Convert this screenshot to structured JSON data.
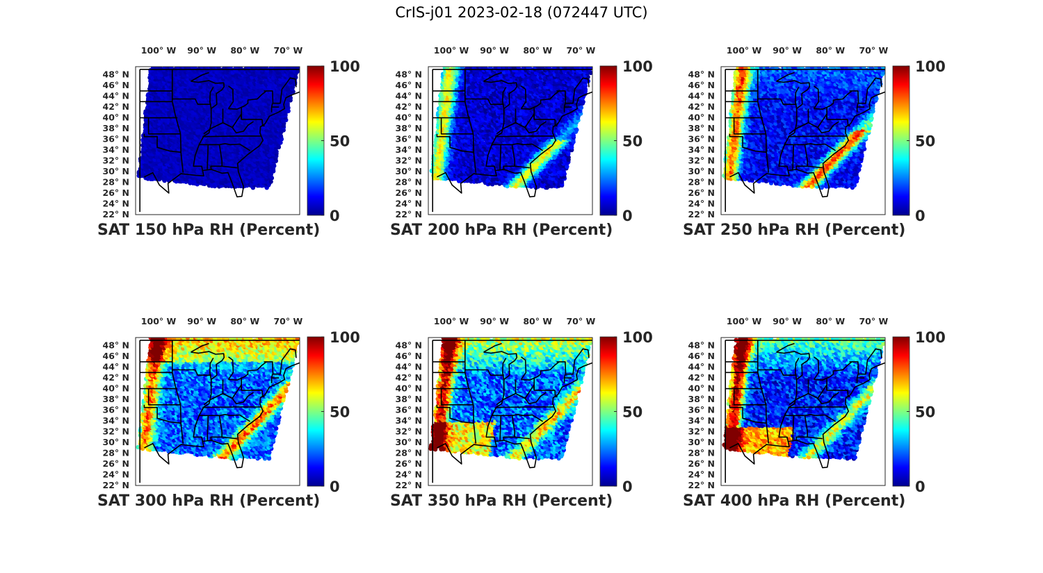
{
  "figure": {
    "title": "CrIS-j01 2023-02-18 (072447 UTC)"
  },
  "colors": {
    "colormap": "jet",
    "background": "#ffffff",
    "boundaries": "#000000",
    "text": "#262626"
  },
  "chart_data": [
    {
      "type": "heatmap",
      "title": "SAT 150 hPa RH (Percent)",
      "level": "150 hPa",
      "variable": "RH",
      "units": "Percent",
      "lon_ticks": [
        "100° W",
        "90° W",
        "80° W",
        "70° W"
      ],
      "lat_ticks": [
        "48° N",
        "46° N",
        "44° N",
        "42° N",
        "40° N",
        "38° N",
        "36° N",
        "34° N",
        "32° N",
        "30° N",
        "28° N",
        "26° N",
        "24° N",
        "22° N"
      ],
      "lon_range": [
        -105,
        -67
      ],
      "lat_range": [
        22,
        49.5
      ],
      "colorbar": {
        "min": 0,
        "max": 100,
        "ticks": [
          "0",
          "50",
          "100"
        ]
      },
      "pattern": "uniformly very dry (~3-10%) across the swath",
      "regions": [
        {
          "name": "swath",
          "rh": 6
        }
      ]
    },
    {
      "type": "heatmap",
      "title": "SAT 200 hPa RH (Percent)",
      "level": "200 hPa",
      "variable": "RH",
      "units": "Percent",
      "lon_ticks": [
        "100° W",
        "90° W",
        "80° W",
        "70° W"
      ],
      "lat_ticks": [
        "48° N",
        "46° N",
        "44° N",
        "42° N",
        "40° N",
        "38° N",
        "36° N",
        "34° N",
        "32° N",
        "30° N",
        "28° N",
        "26° N",
        "24° N",
        "22° N"
      ],
      "lon_range": [
        -105,
        -67
      ],
      "lat_range": [
        22,
        49.5
      ],
      "colorbar": {
        "min": 0,
        "max": 100,
        "ticks": [
          "0",
          "50",
          "100"
        ]
      },
      "pattern": "mostly dry; moist band along western swath edge and southeast coast",
      "regions": [
        {
          "name": "interior",
          "rh": 8
        },
        {
          "name": "western edge",
          "rh": 60
        },
        {
          "name": "southeast coast",
          "rh": 70
        }
      ]
    },
    {
      "type": "heatmap",
      "title": "SAT 250 hPa RH (Percent)",
      "level": "250 hPa",
      "variable": "RH",
      "units": "Percent",
      "lon_ticks": [
        "100° W",
        "90° W",
        "80° W",
        "70° W"
      ],
      "lat_ticks": [
        "48° N",
        "46° N",
        "44° N",
        "42° N",
        "40° N",
        "38° N",
        "36° N",
        "34° N",
        "32° N",
        "30° N",
        "28° N",
        "26° N",
        "24° N",
        "22° N"
      ],
      "lon_range": [
        -105,
        -67
      ],
      "lat_range": [
        22,
        49.5
      ],
      "colorbar": {
        "min": 0,
        "max": 100,
        "ticks": [
          "0",
          "50",
          "100"
        ]
      },
      "pattern": "dry interior; moist bands in the west and along the southeast coast",
      "regions": [
        {
          "name": "interior",
          "rh": 12
        },
        {
          "name": "western edge",
          "rh": 75
        },
        {
          "name": "southeast coast",
          "rh": 80
        }
      ]
    },
    {
      "type": "heatmap",
      "title": "SAT 300 hPa RH (Percent)",
      "level": "300 hPa",
      "variable": "RH",
      "units": "Percent",
      "lon_ticks": [
        "100° W",
        "90° W",
        "80° W",
        "70° W"
      ],
      "lat_ticks": [
        "48° N",
        "46° N",
        "44° N",
        "42° N",
        "40° N",
        "38° N",
        "36° N",
        "34° N",
        "32° N",
        "30° N",
        "28° N",
        "26° N",
        "24° N",
        "22° N"
      ],
      "lon_range": [
        -105,
        -67
      ],
      "lat_range": [
        22,
        49.5
      ],
      "colorbar": {
        "min": 0,
        "max": 100,
        "ticks": [
          "0",
          "50",
          "100"
        ]
      },
      "pattern": "moderate humidity in the north, dry center, moist west and southeast",
      "regions": [
        {
          "name": "north",
          "rh": 45
        },
        {
          "name": "interior",
          "rh": 20
        },
        {
          "name": "western edge",
          "rh": 75
        },
        {
          "name": "southeast coast",
          "rh": 80
        }
      ]
    },
    {
      "type": "heatmap",
      "title": "SAT 350 hPa RH (Percent)",
      "level": "350 hPa",
      "variable": "RH",
      "units": "Percent",
      "lon_ticks": [
        "100° W",
        "90° W",
        "80° W",
        "70° W"
      ],
      "lat_ticks": [
        "48° N",
        "46° N",
        "44° N",
        "42° N",
        "40° N",
        "38° N",
        "36° N",
        "34° N",
        "32° N",
        "30° N",
        "28° N",
        "26° N",
        "24° N",
        "22° N"
      ],
      "lon_range": [
        -105,
        -67
      ],
      "lat_range": [
        22,
        49.5
      ],
      "colorbar": {
        "min": 0,
        "max": 100,
        "ticks": [
          "0",
          "50",
          "100"
        ]
      },
      "pattern": "moist north and west, dry center, very moist southwest",
      "regions": [
        {
          "name": "north",
          "rh": 55
        },
        {
          "name": "interior",
          "rh": 20
        },
        {
          "name": "western edge",
          "rh": 90
        },
        {
          "name": "southeast coast",
          "rh": 65
        }
      ]
    },
    {
      "type": "heatmap",
      "title": "SAT 400 hPa RH (Percent)",
      "level": "400 hPa",
      "variable": "RH",
      "units": "Percent",
      "lon_ticks": [
        "100° W",
        "90° W",
        "80° W",
        "70° W"
      ],
      "lat_ticks": [
        "48° N",
        "46° N",
        "44° N",
        "42° N",
        "40° N",
        "38° N",
        "36° N",
        "34° N",
        "32° N",
        "30° N",
        "28° N",
        "26° N",
        "24° N",
        "22° N"
      ],
      "lon_range": [
        -105,
        -67
      ],
      "lat_range": [
        22,
        49.5
      ],
      "colorbar": {
        "min": 0,
        "max": 100,
        "ticks": [
          "0",
          "50",
          "100"
        ]
      },
      "pattern": "moist northern edge, dry center, very moist southwest and Gulf coast",
      "regions": [
        {
          "name": "north",
          "rh": 50
        },
        {
          "name": "interior",
          "rh": 15
        },
        {
          "name": "western edge",
          "rh": 92
        },
        {
          "name": "southeast coast",
          "rh": 85
        }
      ]
    }
  ]
}
